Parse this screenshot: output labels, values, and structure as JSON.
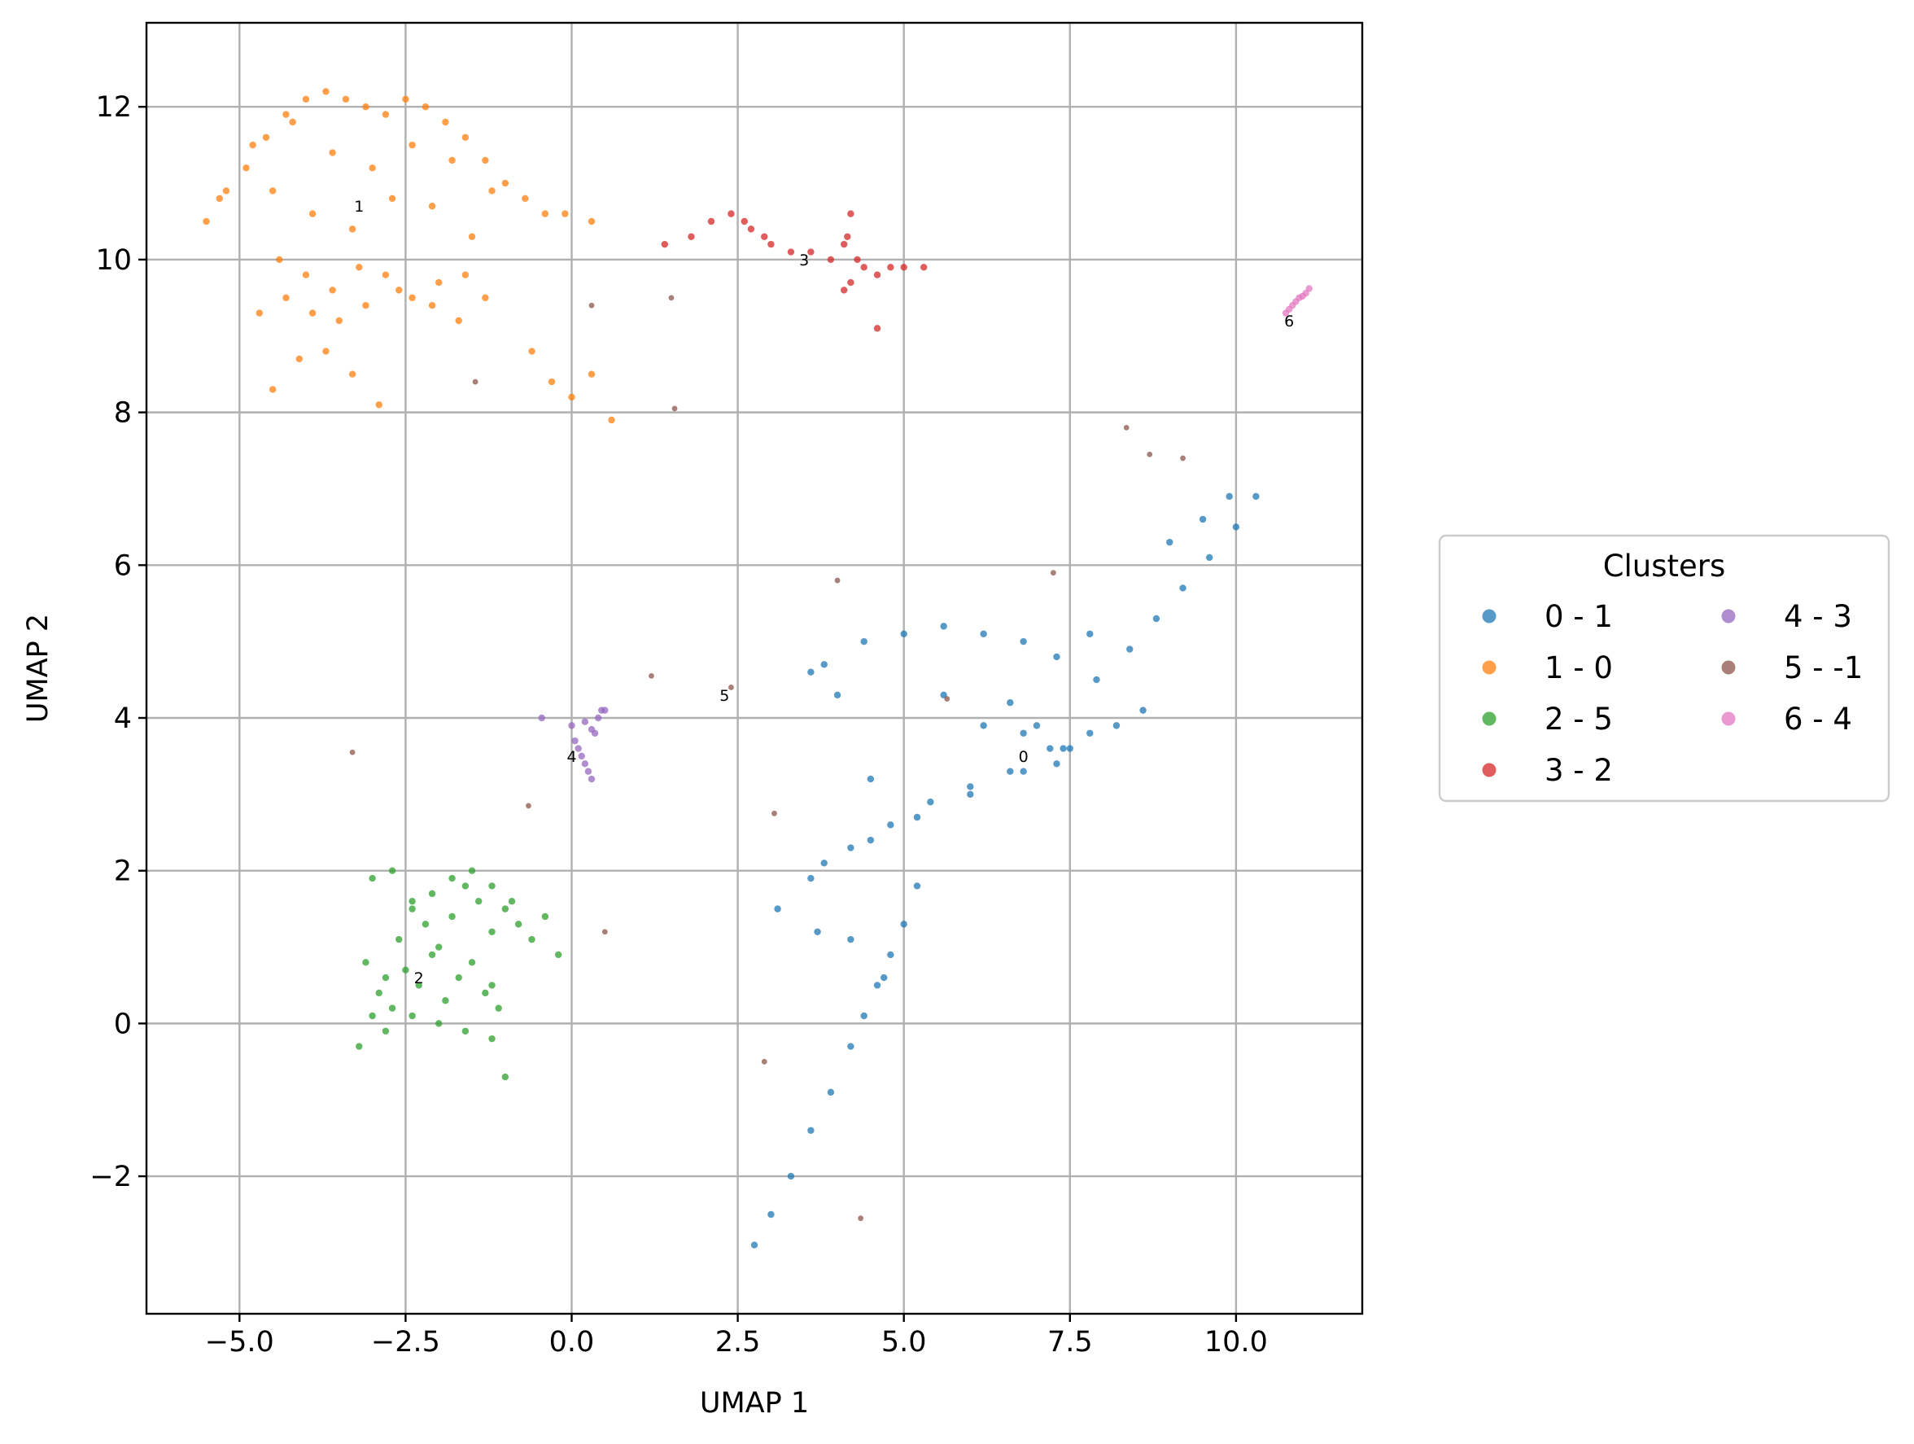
{
  "chart_data": {
    "type": "scatter",
    "title": "",
    "xlabel": "UMAP 1",
    "ylabel": "UMAP 2",
    "xlim": [
      -6.4,
      11.9
    ],
    "ylim": [
      -3.8,
      13.1
    ],
    "grid": true,
    "x_ticks": [
      -5.0,
      -2.5,
      0.0,
      2.5,
      5.0,
      7.5,
      10.0
    ],
    "x_tick_labels": [
      "−5.0",
      "−2.5",
      "0.0",
      "2.5",
      "5.0",
      "7.5",
      "10.0"
    ],
    "y_ticks": [
      -2,
      0,
      2,
      4,
      6,
      8,
      10,
      12
    ],
    "y_tick_labels": [
      "−2",
      "0",
      "2",
      "4",
      "6",
      "8",
      "10",
      "12"
    ],
    "legend": {
      "title": "Clusters",
      "placement": "outside right, center",
      "columns": 2,
      "entries": [
        "0 - 1",
        "1 - 0",
        "2 - 5",
        "3 - 2",
        "4 - 3",
        "5 - -1",
        "6 - 4"
      ]
    },
    "series": [
      {
        "name": "0 - 1",
        "color": "#1f77b4",
        "label": "0",
        "label_at": [
          6.8,
          3.5
        ],
        "x": [
          2.75,
          3.0,
          3.3,
          3.6,
          3.9,
          4.2,
          4.4,
          4.6,
          4.8,
          5.0,
          4.7,
          5.2,
          3.1,
          3.6,
          4.2,
          4.8,
          5.4,
          6.0,
          6.6,
          7.2,
          7.8,
          3.8,
          4.5,
          5.2,
          6.0,
          6.8,
          7.5,
          8.2,
          8.6,
          5.6,
          6.2,
          6.8,
          7.3,
          7.8,
          6.6,
          7.0,
          7.4,
          7.9,
          8.4,
          8.8,
          9.2,
          9.6,
          10.0,
          10.3,
          9.0,
          9.5,
          9.9,
          3.8,
          4.4,
          5.0,
          5.6,
          6.2,
          6.8,
          7.3,
          3.7,
          4.2,
          3.6,
          4.0,
          4.5
        ],
        "y": [
          -2.9,
          -2.5,
          -2.0,
          -1.4,
          -0.9,
          -0.3,
          0.1,
          0.5,
          0.9,
          1.3,
          0.6,
          1.8,
          1.5,
          1.9,
          2.3,
          2.6,
          2.9,
          3.1,
          3.3,
          3.6,
          3.8,
          2.1,
          2.4,
          2.7,
          3.0,
          3.3,
          3.6,
          3.9,
          4.1,
          5.2,
          5.1,
          5.0,
          4.8,
          5.1,
          4.2,
          3.9,
          3.6,
          4.5,
          4.9,
          5.3,
          5.7,
          6.1,
          6.5,
          6.9,
          6.3,
          6.6,
          6.9,
          4.7,
          5.0,
          5.1,
          4.3,
          3.9,
          3.8,
          3.4,
          1.2,
          1.1,
          4.6,
          4.3,
          3.2
        ]
      },
      {
        "name": "1 - 0",
        "color": "#ff7f0e",
        "label": "1",
        "label_at": [
          -3.2,
          10.7
        ],
        "x": [
          -5.5,
          -5.2,
          -4.9,
          -4.6,
          -4.3,
          -4.0,
          -3.7,
          -3.4,
          -3.1,
          -2.8,
          -2.5,
          -2.2,
          -1.9,
          -1.6,
          -1.3,
          -1.0,
          -0.7,
          -0.4,
          -0.1,
          0.3,
          -5.3,
          -4.8,
          -4.2,
          -3.6,
          -3.0,
          -2.4,
          -1.8,
          -1.2,
          -4.5,
          -3.9,
          -3.3,
          -2.7,
          -2.1,
          -1.5,
          -4.4,
          -4.0,
          -3.6,
          -3.2,
          -2.8,
          -2.4,
          -2.0,
          -1.6,
          -4.7,
          -4.3,
          -3.9,
          -3.5,
          -3.1,
          -2.6,
          -2.1,
          -1.7,
          -1.3,
          -4.5,
          -4.1,
          -3.7,
          -3.3,
          -2.9,
          -0.6,
          -0.3,
          0.0,
          0.3,
          0.6
        ],
        "y": [
          10.5,
          10.9,
          11.2,
          11.6,
          11.9,
          12.1,
          12.2,
          12.1,
          12.0,
          11.9,
          12.1,
          12.0,
          11.8,
          11.6,
          11.3,
          11.0,
          10.8,
          10.6,
          10.6,
          10.5,
          10.8,
          11.5,
          11.8,
          11.4,
          11.2,
          11.5,
          11.3,
          10.9,
          10.9,
          10.6,
          10.4,
          10.8,
          10.7,
          10.3,
          10.0,
          9.8,
          9.6,
          9.9,
          9.8,
          9.5,
          9.7,
          9.8,
          9.3,
          9.5,
          9.3,
          9.2,
          9.4,
          9.6,
          9.4,
          9.2,
          9.5,
          8.3,
          8.7,
          8.8,
          8.5,
          8.1,
          8.8,
          8.4,
          8.2,
          8.5,
          7.9
        ]
      },
      {
        "name": "2 - 5",
        "color": "#2ca02c",
        "label": "2",
        "label_at": [
          -2.3,
          0.6
        ],
        "x": [
          -3.2,
          -3.0,
          -2.8,
          -2.6,
          -2.4,
          -2.2,
          -2.0,
          -1.8,
          -1.6,
          -1.4,
          -1.2,
          -1.0,
          -0.8,
          -0.6,
          -0.4,
          -0.2,
          -3.1,
          -2.9,
          -2.7,
          -2.5,
          -2.3,
          -2.1,
          -1.9,
          -1.7,
          -1.5,
          -1.3,
          -1.1,
          -3.0,
          -2.7,
          -2.4,
          -2.1,
          -1.8,
          -1.5,
          -1.2,
          -0.9,
          -2.8,
          -2.4,
          -2.0,
          -1.6,
          -1.2,
          -1.0,
          -1.2
        ],
        "y": [
          -0.3,
          0.1,
          0.6,
          1.1,
          1.5,
          1.3,
          1.0,
          1.4,
          1.8,
          1.6,
          1.2,
          1.5,
          1.3,
          1.1,
          1.4,
          0.9,
          0.8,
          0.4,
          0.2,
          0.7,
          0.5,
          0.9,
          0.3,
          0.6,
          0.8,
          0.4,
          0.2,
          1.9,
          2.0,
          1.6,
          1.7,
          1.9,
          2.0,
          1.8,
          1.6,
          -0.1,
          0.1,
          0.0,
          -0.1,
          -0.2,
          -0.7,
          0.5
        ]
      },
      {
        "name": "3 - 2",
        "color": "#d62728",
        "label": "3",
        "label_at": [
          3.5,
          10.0
        ],
        "x": [
          1.4,
          1.8,
          2.1,
          2.4,
          2.7,
          3.0,
          3.3,
          3.6,
          3.9,
          4.1,
          4.3,
          4.4,
          4.6,
          4.8,
          5.0,
          5.3,
          4.6,
          4.2,
          4.15,
          4.2,
          4.1,
          2.6,
          2.9
        ],
        "y": [
          10.2,
          10.3,
          10.5,
          10.6,
          10.4,
          10.2,
          10.1,
          10.1,
          10.0,
          10.2,
          10.0,
          9.9,
          9.8,
          9.9,
          9.9,
          9.9,
          9.1,
          10.6,
          10.3,
          9.7,
          9.6,
          10.5,
          10.3
        ]
      },
      {
        "name": "4 - 3",
        "color": "#9467bd",
        "label": "4",
        "label_at": [
          0.0,
          3.5
        ],
        "x": [
          0.0,
          0.05,
          0.1,
          0.15,
          0.2,
          0.25,
          0.3,
          0.35,
          0.4,
          0.45,
          0.5,
          0.2,
          0.3,
          -0.45
        ],
        "y": [
          3.9,
          3.7,
          3.6,
          3.5,
          3.4,
          3.3,
          3.2,
          3.8,
          4.0,
          4.1,
          4.1,
          3.95,
          3.85,
          4.0
        ]
      },
      {
        "name": "5 - -1",
        "color": "#8c564b",
        "label": "5",
        "label_at": [
          2.3,
          4.3
        ],
        "x": [
          0.3,
          1.5,
          1.55,
          -1.45,
          8.35,
          8.7,
          9.2,
          7.25,
          4.0,
          1.2,
          2.4,
          5.65,
          -3.3,
          -0.65,
          3.05,
          0.5,
          2.9,
          4.35
        ],
        "y": [
          9.4,
          9.5,
          8.05,
          8.4,
          7.8,
          7.45,
          7.4,
          5.9,
          5.8,
          4.55,
          4.4,
          4.25,
          3.55,
          2.85,
          2.75,
          1.2,
          -0.5,
          -2.55
        ]
      },
      {
        "name": "6 - 4",
        "color": "#e377c2",
        "label": "6",
        "label_at": [
          10.8,
          9.2
        ],
        "x": [
          10.75,
          10.8,
          10.85,
          10.9,
          10.95,
          11.0,
          11.05,
          11.1
        ],
        "y": [
          9.3,
          9.35,
          9.4,
          9.45,
          9.5,
          9.52,
          9.56,
          9.62
        ]
      }
    ]
  }
}
